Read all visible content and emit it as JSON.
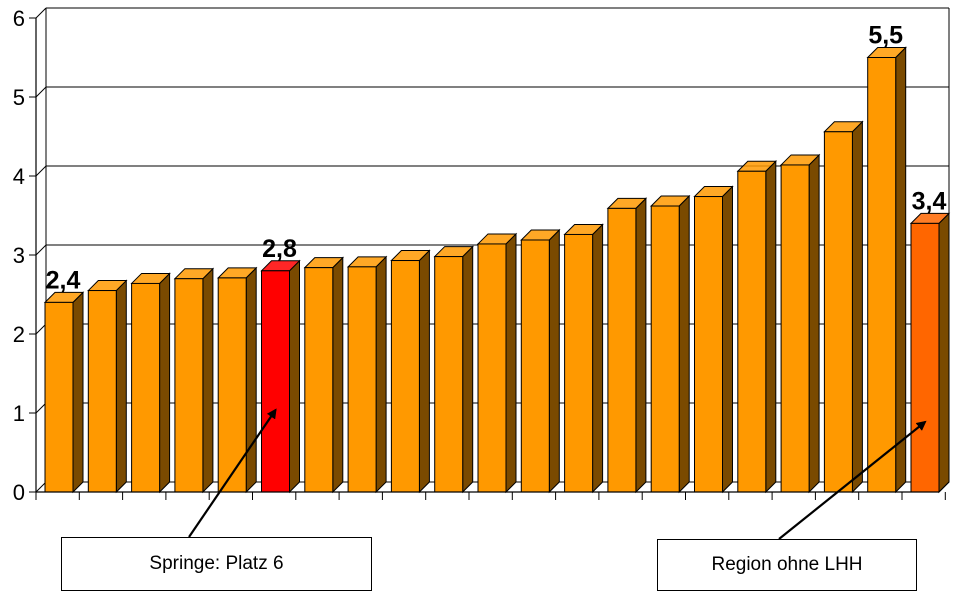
{
  "chart_data": {
    "type": "bar",
    "ylim": [
      0,
      6
    ],
    "yticks": [
      "0",
      "1",
      "2",
      "3",
      "4",
      "5",
      "6"
    ],
    "values": [
      2.4,
      2.55,
      2.64,
      2.7,
      2.71,
      2.8,
      2.84,
      2.85,
      2.93,
      2.98,
      3.14,
      3.19,
      3.26,
      3.59,
      3.62,
      3.74,
      4.06,
      4.14,
      4.56,
      5.5,
      3.4
    ],
    "data_labels": [
      "2,4",
      "",
      "",
      "",
      "",
      "2,8",
      "",
      "",
      "",
      "",
      "",
      "",
      "",
      "",
      "",
      "",
      "",
      "",
      "",
      "5,5",
      "3,4"
    ],
    "colors": {
      "default": "#FF9900",
      "highlight": "#FF0000",
      "region": "#FF6600",
      "side": "#7A4A00",
      "grid": "#000000"
    },
    "highlight_index": 5,
    "region_index": 20,
    "grid": true
  },
  "annotations": {
    "springe": "Springe: Platz 6",
    "region": "Region ohne LHH"
  }
}
